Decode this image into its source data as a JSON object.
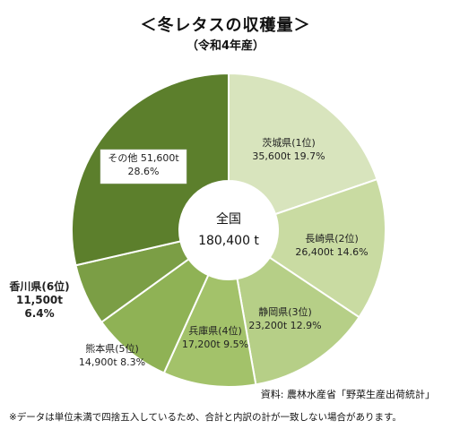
{
  "header": {
    "title": "＜冬レタスの収穫量＞",
    "subtitle": "（令和4年産）"
  },
  "chart_data": {
    "type": "pie",
    "style": "donut",
    "center_label": "全国",
    "center_value": "180,400 t",
    "slices": [
      {
        "name": "茨城県(1位)",
        "value_label": "35,600t 19.7%",
        "value": 35600,
        "percent": 19.7,
        "color": "#d8e4bd"
      },
      {
        "name": "長崎県(2位)",
        "value_label": "26,400t 14.6%",
        "value": 26400,
        "percent": 14.6,
        "color": "#c9dba2"
      },
      {
        "name": "静岡県(3位)",
        "value_label": "23,200t 12.9%",
        "value": 23200,
        "percent": 12.9,
        "color": "#b6cf87"
      },
      {
        "name": "兵庫県(4位)",
        "value_label": "17,200t 9.5%",
        "value": 17200,
        "percent": 9.5,
        "color": "#a3c26a"
      },
      {
        "name": "熊本県(5位)",
        "value_label": "14,900t 8.3%",
        "value": 14900,
        "percent": 8.3,
        "color": "#8fb255"
      },
      {
        "name": "香川県(6位)",
        "value_label": "11,500t 6.4%",
        "value": 11500,
        "percent": 6.4,
        "color": "#7b9e45",
        "label_lines": [
          "香川県(6位)",
          "11,500t",
          "6.4%"
        ]
      },
      {
        "name": "その他",
        "value_label": "51,600t 28.6%",
        "value": 51600,
        "percent": 28.6,
        "color": "#5c7f2c",
        "label_lines": [
          "その他 51,600t",
          "28.6%"
        ]
      }
    ]
  },
  "footer": {
    "source": "資料: 農林水産省「野菜生産出荷統計」",
    "note": "※データは単位未満で四捨五入しているため、合計と内訳の計が一致しない場合があります。"
  }
}
